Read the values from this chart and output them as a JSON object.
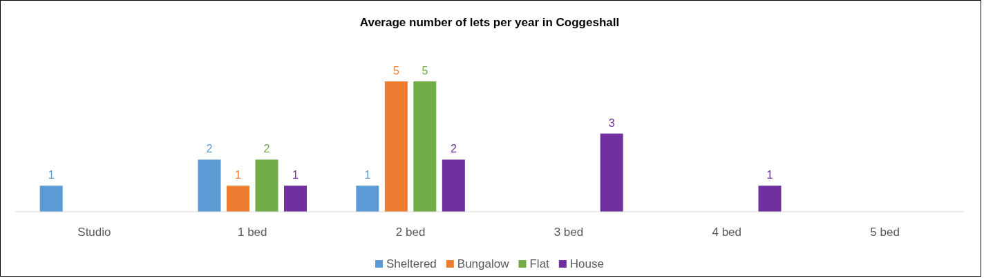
{
  "chart_data": {
    "type": "bar",
    "title": "Average number of lets per year in Coggeshall",
    "categories": [
      "Studio",
      "1 bed",
      "2 bed",
      "3 bed",
      "4 bed",
      "5 bed"
    ],
    "series": [
      {
        "name": "Sheltered",
        "color": "#5b9bd5",
        "values": [
          1,
          2,
          1,
          null,
          null,
          null
        ]
      },
      {
        "name": "Bungalow",
        "color": "#ed7d31",
        "values": [
          null,
          1,
          5,
          null,
          null,
          null
        ]
      },
      {
        "name": "Flat",
        "color": "#70ad47",
        "values": [
          null,
          2,
          5,
          null,
          null,
          null
        ]
      },
      {
        "name": "House",
        "color": "#7030a0",
        "values": [
          null,
          1,
          2,
          3,
          1,
          null
        ]
      }
    ],
    "data_labels": true,
    "legend": "bottom"
  }
}
